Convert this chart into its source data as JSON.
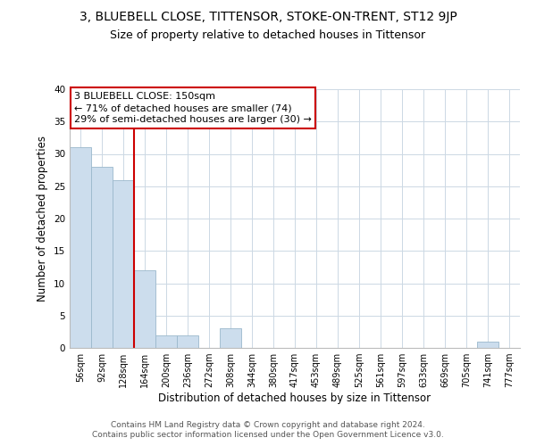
{
  "title": "3, BLUEBELL CLOSE, TITTENSOR, STOKE-ON-TRENT, ST12 9JP",
  "subtitle": "Size of property relative to detached houses in Tittensor",
  "xlabel": "Distribution of detached houses by size in Tittensor",
  "ylabel": "Number of detached properties",
  "bin_labels": [
    "56sqm",
    "92sqm",
    "128sqm",
    "164sqm",
    "200sqm",
    "236sqm",
    "272sqm",
    "308sqm",
    "344sqm",
    "380sqm",
    "417sqm",
    "453sqm",
    "489sqm",
    "525sqm",
    "561sqm",
    "597sqm",
    "633sqm",
    "669sqm",
    "705sqm",
    "741sqm",
    "777sqm"
  ],
  "bar_values": [
    31,
    28,
    26,
    12,
    2,
    2,
    0,
    3,
    0,
    0,
    0,
    0,
    0,
    0,
    0,
    0,
    0,
    0,
    0,
    1,
    0
  ],
  "bar_color": "#ccdded",
  "bar_edge_color": "#9ab8cc",
  "vline_color": "#cc0000",
  "vline_x_index": 3,
  "ylim": [
    0,
    40
  ],
  "annotation_text": "3 BLUEBELL CLOSE: 150sqm\n← 71% of detached houses are smaller (74)\n29% of semi-detached houses are larger (30) →",
  "annotation_box_color": "#ffffff",
  "annotation_box_edge": "#cc0000",
  "footer_text": "Contains HM Land Registry data © Crown copyright and database right 2024.\nContains public sector information licensed under the Open Government Licence v3.0.",
  "background_color": "#ffffff",
  "grid_color": "#ccd8e4",
  "title_fontsize": 10,
  "subtitle_fontsize": 9,
  "tick_fontsize": 7,
  "axis_label_fontsize": 8.5,
  "annotation_fontsize": 8,
  "footer_fontsize": 6.5
}
